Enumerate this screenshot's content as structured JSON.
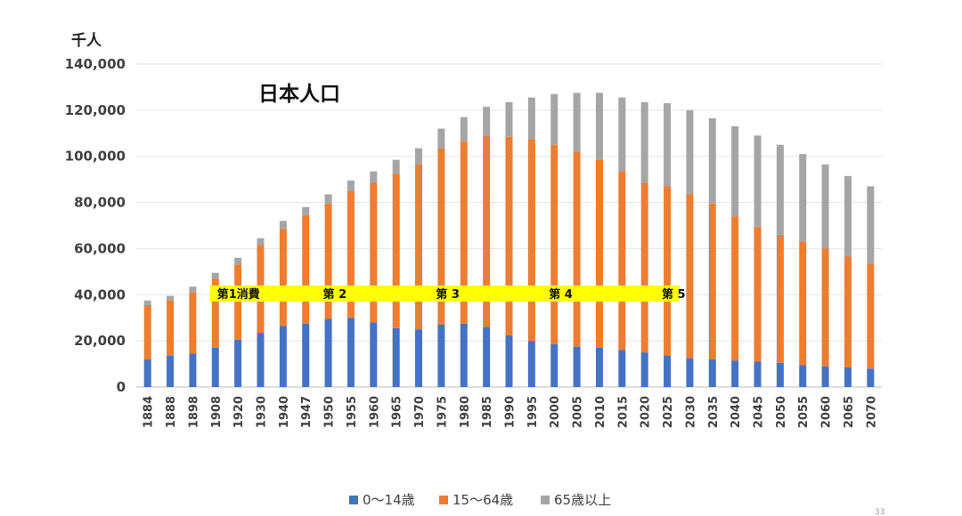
{
  "chart_data": {
    "type": "bar",
    "stacked": true,
    "title": "日本人口",
    "unit_label": "千人",
    "ylim": [
      0,
      140000
    ],
    "y_ticks": [
      "0",
      "20,000",
      "40,000",
      "60,000",
      "80,000",
      "100,000",
      "120,000",
      "140,000"
    ],
    "categories": [
      "1884",
      "1888",
      "1898",
      "1908",
      "1920",
      "1930",
      "1940",
      "1947",
      "1950",
      "1955",
      "1960",
      "1965",
      "1970",
      "1975",
      "1980",
      "1985",
      "1990",
      "1995",
      "2000",
      "2005",
      "2010",
      "2015",
      "2020",
      "2025",
      "2030",
      "2035",
      "2040",
      "2045",
      "2050",
      "2055",
      "2060",
      "2065",
      "2070"
    ],
    "series": [
      {
        "name": "0～14歳",
        "color": "#4472c4",
        "values": [
          12000,
          13500,
          14500,
          17000,
          20500,
          23500,
          26500,
          27500,
          29500,
          30000,
          28000,
          25500,
          25000,
          27000,
          27500,
          26000,
          22500,
          20000,
          18500,
          17500,
          17000,
          16000,
          15000,
          13500,
          12500,
          12000,
          11500,
          11000,
          10500,
          9500,
          9000,
          8500,
          8000
        ]
      },
      {
        "name": "15～64歳",
        "color": "#ed7d31",
        "values": [
          23500,
          24000,
          26500,
          30000,
          32500,
          38000,
          42000,
          47000,
          50000,
          55000,
          60500,
          67000,
          71500,
          76500,
          79000,
          83000,
          86000,
          87500,
          86500,
          84500,
          81500,
          77500,
          73500,
          73500,
          71000,
          67500,
          62500,
          58500,
          55500,
          53500,
          51000,
          48000,
          45500
        ]
      },
      {
        "name": "65歳以上",
        "color": "#a5a5a5",
        "values": [
          2000,
          2000,
          2500,
          2500,
          3000,
          3000,
          3500,
          3500,
          4000,
          4500,
          5000,
          6000,
          7000,
          8500,
          10500,
          12500,
          15000,
          18000,
          22000,
          25500,
          29000,
          32000,
          35000,
          36000,
          36500,
          37000,
          39000,
          39500,
          39000,
          38000,
          36500,
          35000,
          33500
        ]
      }
    ],
    "eras": {
      "ymin": 37000,
      "ymax": 44000,
      "color": "#ffff00",
      "start_index": 3,
      "end_index": 23,
      "labels": [
        {
          "text": "第1消費",
          "index": 3
        },
        {
          "text": "第 2",
          "index": 8
        },
        {
          "text": "第 3",
          "index": 13
        },
        {
          "text": "第 4",
          "index": 18
        },
        {
          "text": "第 5",
          "index": 23
        }
      ]
    },
    "legend_position": "bottom"
  },
  "page_number": "33"
}
